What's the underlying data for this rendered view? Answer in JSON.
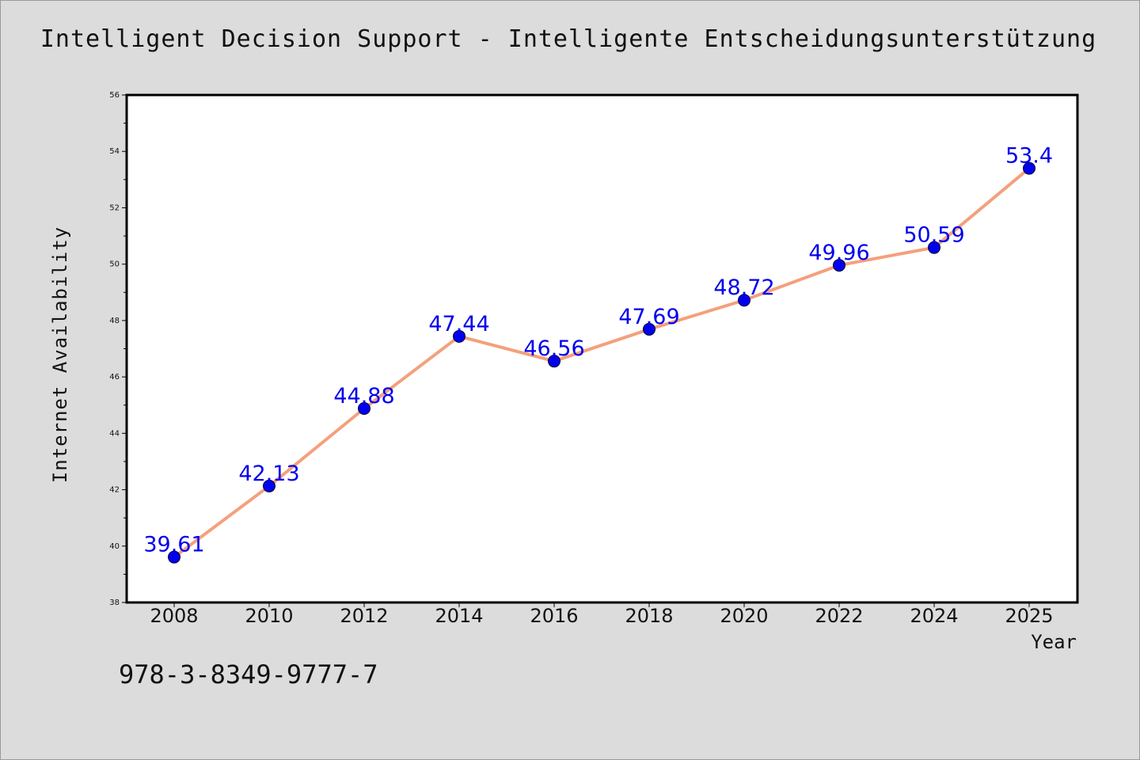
{
  "chart_data": {
    "type": "line",
    "title": "Intelligent Decision Support - Intelligente Entscheidungsunterstützung",
    "xlabel": "Year",
    "ylabel": "Internet Availability",
    "ylim": [
      38,
      56
    ],
    "yticks": [
      38,
      40,
      42,
      44,
      46,
      48,
      50,
      52,
      54,
      56
    ],
    "categories": [
      "2008",
      "2010",
      "2012",
      "2014",
      "2016",
      "2018",
      "2020",
      "2022",
      "2024",
      "2025"
    ],
    "series": [
      {
        "values": [
          39.61,
          42.13,
          44.88,
          47.44,
          46.56,
          47.69,
          48.72,
          49.96,
          50.59,
          53.4
        ],
        "labels": [
          "39.61",
          "42.13",
          "44.88",
          "47.44",
          "46.56",
          "47.69",
          "48.72",
          "49.96",
          "50.59",
          "53.4"
        ],
        "line_color": "#f4a07c",
        "marker_color": "#0000ee",
        "label_color": "#0000ee"
      }
    ],
    "grid": false,
    "legend": "none"
  },
  "footer": {
    "isbn": "978-3-8349-9777-7"
  }
}
